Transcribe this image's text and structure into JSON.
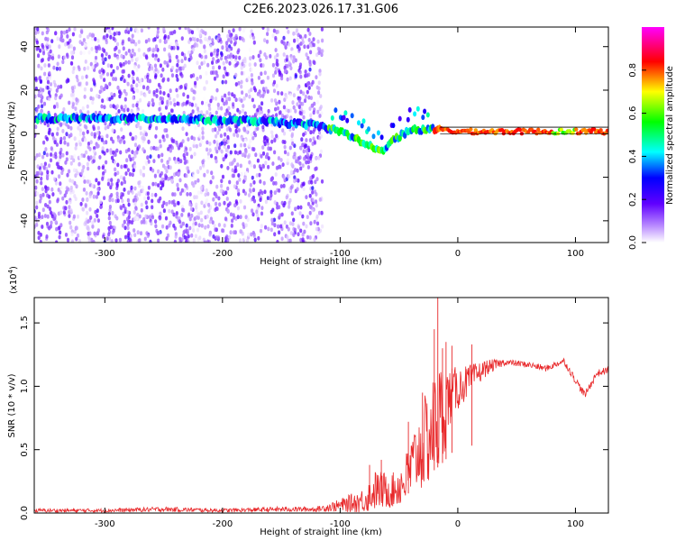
{
  "figure_title": "C2E6.2023.026.17.31.G06",
  "chart_data": [
    {
      "type": "heatmap",
      "xlabel": "Height of straight line (km)",
      "ylabel": "Frequency (Hz)",
      "xlim": [
        -360,
        128
      ],
      "ylim": [
        -50,
        49
      ],
      "x_ticks": [
        -300,
        -200,
        -100,
        0,
        100
      ],
      "x_tick_labels": [
        "-300",
        "-200",
        "-100",
        "0",
        "100"
      ],
      "y_ticks": [
        -40,
        -20,
        0,
        20,
        40
      ],
      "y_tick_labels": [
        "-40",
        "-20",
        "0",
        "20",
        "40"
      ],
      "colorbar": {
        "label": "Normalized spectral amplitude",
        "range": [
          0,
          1
        ],
        "ticks": [
          0.0,
          0.2,
          0.4,
          0.6,
          0.8
        ],
        "tick_labels": [
          "0.0",
          "0.2",
          "0.4",
          "0.6",
          "0.8"
        ],
        "colors": [
          "#ffffff",
          "#8a2be2",
          "#0000ff",
          "#00ffff",
          "#00ff00",
          "#ffff00",
          "#ff0000",
          "#ff00ff"
        ]
      },
      "ridge": [
        {
          "x": -360,
          "freq": 7
        },
        {
          "x": -300,
          "freq": 7
        },
        {
          "x": -240,
          "freq": 7
        },
        {
          "x": -200,
          "freq": 6
        },
        {
          "x": -180,
          "freq": 6
        },
        {
          "x": -150,
          "freq": 5
        },
        {
          "x": -120,
          "freq": 4
        },
        {
          "x": -100,
          "freq": 1
        },
        {
          "x": -80,
          "freq": -4
        },
        {
          "x": -65,
          "freq": -8
        },
        {
          "x": -55,
          "freq": -3
        },
        {
          "x": -40,
          "freq": 2
        },
        {
          "x": -20,
          "freq": 2
        },
        {
          "x": 0,
          "freq": 1
        },
        {
          "x": 50,
          "freq": 1
        },
        {
          "x": 128,
          "freq": 1
        }
      ],
      "noise_bands": [
        {
          "x_from": -360,
          "x_to": -330
        },
        {
          "x_from": -310,
          "x_to": -275
        },
        {
          "x_from": -265,
          "x_to": -225
        },
        {
          "x_from": -210,
          "x_to": -185
        },
        {
          "x_from": -175,
          "x_to": -145
        },
        {
          "x_from": -140,
          "x_to": -120
        }
      ],
      "noise_floor_end_x": -115
    },
    {
      "type": "line",
      "xlabel": "Height of straight line (km)",
      "ylabel": "SNR (10 * v/v)",
      "scale_label": "(x10",
      "scale_exponent": "4",
      "scale_suffix": ")",
      "xlim": [
        -360,
        128
      ],
      "ylim": [
        0,
        1.7
      ],
      "x_ticks": [
        -300,
        -200,
        -100,
        0,
        100
      ],
      "x_tick_labels": [
        "-300",
        "-200",
        "-100",
        "0",
        "100"
      ],
      "y_ticks": [
        0.0,
        0.5,
        1.0,
        1.5
      ],
      "y_tick_labels": [
        "0.0",
        "0.5",
        "1.0",
        "1.5"
      ],
      "series": [
        {
          "color": "#e8282a",
          "envelope": [
            {
              "x": -360,
              "mean": 0.02,
              "jitter": 0.015
            },
            {
              "x": -300,
              "mean": 0.02,
              "jitter": 0.015
            },
            {
              "x": -250,
              "mean": 0.03,
              "jitter": 0.02
            },
            {
              "x": -200,
              "mean": 0.02,
              "jitter": 0.015
            },
            {
              "x": -150,
              "mean": 0.03,
              "jitter": 0.02
            },
            {
              "x": -120,
              "mean": 0.03,
              "jitter": 0.02
            },
            {
              "x": -100,
              "mean": 0.06,
              "jitter": 0.05
            },
            {
              "x": -80,
              "mean": 0.1,
              "jitter": 0.1
            },
            {
              "x": -70,
              "mean": 0.18,
              "jitter": 0.16
            },
            {
              "x": -55,
              "mean": 0.18,
              "jitter": 0.14
            },
            {
              "x": -45,
              "mean": 0.25,
              "jitter": 0.2
            },
            {
              "x": -35,
              "mean": 0.45,
              "jitter": 0.3
            },
            {
              "x": -25,
              "mean": 0.6,
              "jitter": 0.4
            },
            {
              "x": -15,
              "mean": 0.75,
              "jitter": 0.45
            },
            {
              "x": -5,
              "mean": 0.95,
              "jitter": 0.2
            },
            {
              "x": 10,
              "mean": 1.05,
              "jitter": 0.12
            },
            {
              "x": 25,
              "mean": 1.15,
              "jitter": 0.06
            },
            {
              "x": 40,
              "mean": 1.19,
              "jitter": 0.025
            },
            {
              "x": 60,
              "mean": 1.17,
              "jitter": 0.025
            },
            {
              "x": 75,
              "mean": 1.14,
              "jitter": 0.025
            },
            {
              "x": 90,
              "mean": 1.2,
              "jitter": 0.025
            },
            {
              "x": 100,
              "mean": 1.05,
              "jitter": 0.03
            },
            {
              "x": 108,
              "mean": 0.93,
              "jitter": 0.03
            },
            {
              "x": 118,
              "mean": 1.1,
              "jitter": 0.03
            },
            {
              "x": 128,
              "mean": 1.13,
              "jitter": 0.025
            }
          ],
          "spikes": [
            {
              "x": -17,
              "y": 1.7
            },
            {
              "x": -20,
              "y": 1.45
            },
            {
              "x": -13,
              "y": 1.3
            },
            {
              "x": -30,
              "y": 0.95
            },
            {
              "x": -10,
              "y": 1.35
            },
            {
              "x": -5,
              "y": 1.32
            },
            {
              "x": 12,
              "y": 1.33
            },
            {
              "x": -65,
              "y": 0.42
            },
            {
              "x": -75,
              "y": 0.38
            },
            {
              "x": -42,
              "y": 0.72
            }
          ]
        }
      ]
    }
  ]
}
